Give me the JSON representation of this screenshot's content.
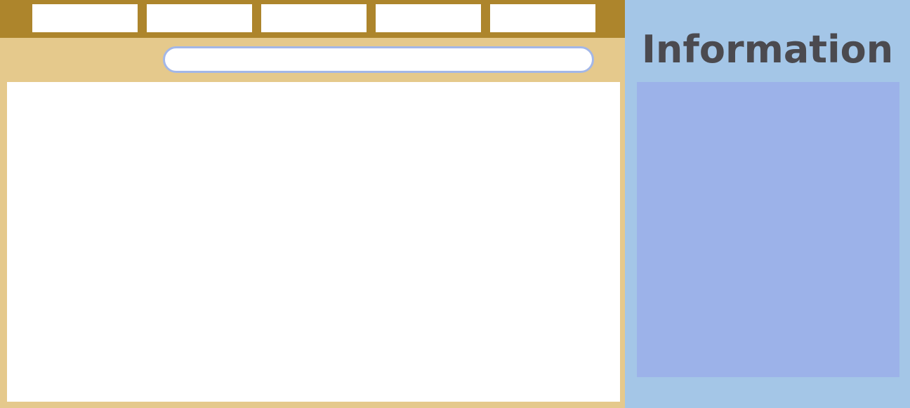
{
  "header": {
    "tabs": [
      {
        "label": ""
      },
      {
        "label": ""
      },
      {
        "label": ""
      },
      {
        "label": ""
      },
      {
        "label": ""
      }
    ]
  },
  "search": {
    "value": "",
    "placeholder": ""
  },
  "sidebar": {
    "title": "Information"
  },
  "colors": {
    "top_bar": "#ad852c",
    "left_panel": "#e5c98c",
    "search_border": "#a3b7e8",
    "right_panel": "#a4c6e7",
    "info_box": "#9cb2e9",
    "title_text": "#4b4a4f"
  }
}
